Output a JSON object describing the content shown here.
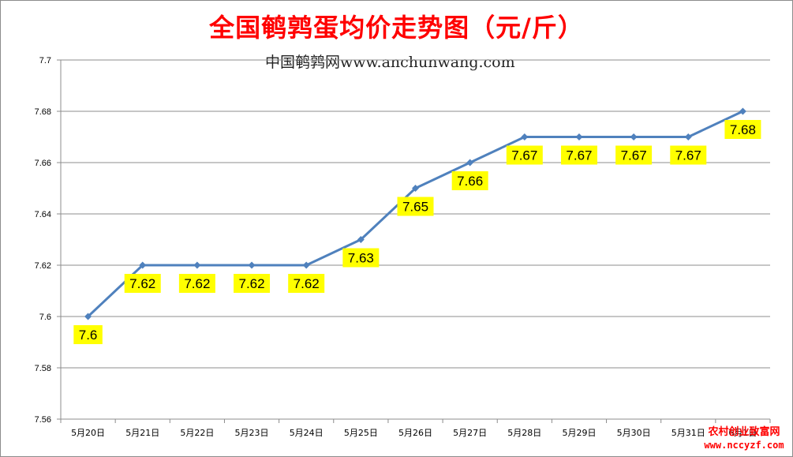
{
  "chart_data": {
    "type": "line",
    "title": "全国鹌鹑蛋均价走势图（元/斤）",
    "subtitle": "中国鹌鹑网www.anchunwang.com",
    "categories": [
      "5月20日",
      "5月21日",
      "5月22日",
      "5月23日",
      "5月24日",
      "5月25日",
      "5月26日",
      "5月27日",
      "5月28日",
      "5月29日",
      "5月30日",
      "5月31日",
      "6月1日"
    ],
    "series": [
      {
        "values": [
          7.6,
          7.62,
          7.62,
          7.62,
          7.62,
          7.63,
          7.65,
          7.66,
          7.67,
          7.67,
          7.67,
          7.67,
          7.68
        ]
      }
    ],
    "data_labels": [
      "7.6",
      "7.62",
      "7.62",
      "7.62",
      "7.62",
      "7.63",
      "7.65",
      "7.66",
      "7.67",
      "7.67",
      "7.67",
      "7.67",
      "7.68"
    ],
    "ylim": [
      7.56,
      7.7
    ],
    "yticks": [
      "7.56",
      "7.58",
      "7.6",
      "7.62",
      "7.64",
      "7.66",
      "7.68",
      "7.7"
    ],
    "grid": true,
    "legend": "none",
    "line_color": "#4f81bd",
    "label_bg_color": "#ffff00"
  },
  "watermark": {
    "line1": "农村创业致富网",
    "line2": "www.nccyzf.com"
  }
}
